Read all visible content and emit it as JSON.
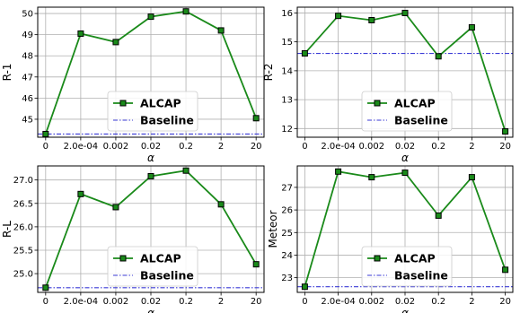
{
  "chart_data": [
    {
      "type": "line",
      "categories": [
        "0",
        "2.0e-04",
        "0.002",
        "0.02",
        "0.2",
        "2",
        "20"
      ],
      "series": [
        {
          "name": "ALCAP",
          "values": [
            44.3,
            49.05,
            48.65,
            49.85,
            50.1,
            49.2,
            45.05
          ],
          "color": "#1a8a1a"
        },
        {
          "name": "Baseline",
          "values": [
            44.3,
            44.3,
            44.3,
            44.3,
            44.3,
            44.3,
            44.3
          ],
          "color": "#3b3bd6",
          "style": "dash-dot"
        }
      ],
      "xlabel": "α",
      "ylabel": "R-1",
      "ylim": [
        44.15,
        50.3
      ],
      "yticks": [
        45,
        46,
        47,
        48,
        49,
        50
      ],
      "yticklabels": [
        "45",
        "46",
        "47",
        "48",
        "49",
        "50"
      ],
      "grid": true,
      "legend_position": "lower center"
    },
    {
      "type": "line",
      "categories": [
        "0",
        "2.0e-04",
        "0.002",
        "0.02",
        "0.2",
        "2",
        "20"
      ],
      "series": [
        {
          "name": "ALCAP",
          "values": [
            14.6,
            15.9,
            15.75,
            16.0,
            14.5,
            15.5,
            11.9
          ],
          "color": "#1a8a1a"
        },
        {
          "name": "Baseline",
          "values": [
            14.6,
            14.6,
            14.6,
            14.6,
            14.6,
            14.6,
            14.6
          ],
          "color": "#3b3bd6",
          "style": "dash-dot"
        }
      ],
      "xlabel": "α",
      "ylabel": "R-2",
      "ylim": [
        11.7,
        16.2
      ],
      "yticks": [
        12,
        13,
        14,
        15,
        16
      ],
      "yticklabels": [
        "12",
        "13",
        "14",
        "15",
        "16"
      ],
      "grid": true,
      "legend_position": "lower center"
    },
    {
      "type": "line",
      "categories": [
        "0",
        "2.0e-04",
        "0.002",
        "0.02",
        "0.2",
        "2",
        "20"
      ],
      "series": [
        {
          "name": "ALCAP",
          "values": [
            24.7,
            26.7,
            26.42,
            27.08,
            27.2,
            26.48,
            25.2
          ],
          "color": "#1a8a1a"
        },
        {
          "name": "Baseline",
          "values": [
            24.7,
            24.7,
            24.7,
            24.7,
            24.7,
            24.7,
            24.7
          ],
          "color": "#3b3bd6",
          "style": "dash-dot"
        }
      ],
      "xlabel": "α",
      "ylabel": "R-L",
      "ylim": [
        24.6,
        27.3
      ],
      "yticks": [
        25.0,
        25.5,
        26.0,
        26.5,
        27.0
      ],
      "yticklabels": [
        "25.0",
        "25.5",
        "26.0",
        "26.5",
        "27.0"
      ],
      "grid": true,
      "legend_position": "lower center"
    },
    {
      "type": "line",
      "categories": [
        "0",
        "2.0e-04",
        "0.002",
        "0.02",
        "0.2",
        "2",
        "20"
      ],
      "series": [
        {
          "name": "ALCAP",
          "values": [
            22.6,
            27.7,
            27.45,
            27.65,
            25.75,
            27.45,
            23.35
          ],
          "color": "#1a8a1a"
        },
        {
          "name": "Baseline",
          "values": [
            22.6,
            22.6,
            22.6,
            22.6,
            22.6,
            22.6,
            22.6
          ],
          "color": "#3b3bd6",
          "style": "dash-dot"
        }
      ],
      "xlabel": "α",
      "ylabel": "Meteor",
      "ylim": [
        22.35,
        27.95
      ],
      "yticks": [
        23,
        24,
        25,
        26,
        27
      ],
      "yticklabels": [
        "23",
        "24",
        "25",
        "26",
        "27"
      ],
      "grid": true,
      "legend_position": "lower center"
    }
  ]
}
